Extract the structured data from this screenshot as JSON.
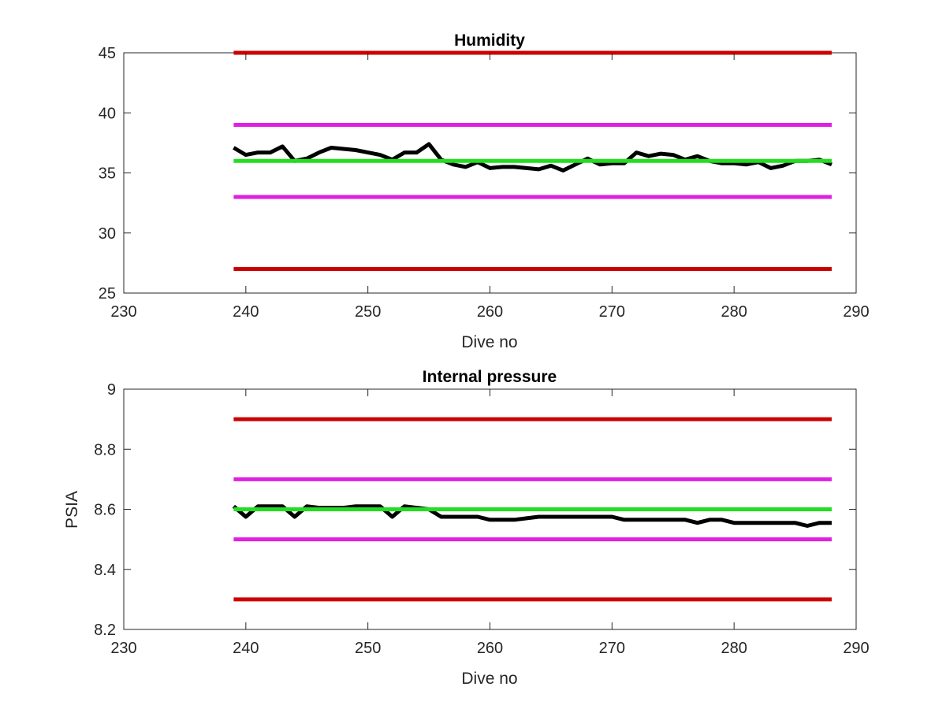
{
  "chart_data": [
    {
      "type": "line",
      "title": "Humidity",
      "xlabel": "Dive no",
      "ylabel": "",
      "xlim": [
        230,
        290
      ],
      "ylim": [
        25,
        45
      ],
      "xticks": [
        "230",
        "240",
        "250",
        "260",
        "270",
        "280",
        "290"
      ],
      "yticks": [
        "25",
        "30",
        "35",
        "40",
        "45"
      ],
      "grid": false,
      "series": [
        {
          "color": "#cc0000",
          "x": [
            239,
            288
          ],
          "y": [
            45,
            45
          ]
        },
        {
          "color": "#e020e0",
          "x": [
            239,
            288
          ],
          "y": [
            39,
            39
          ]
        },
        {
          "color": "#000000",
          "x": [
            239,
            240,
            241,
            242,
            243,
            244,
            245,
            246,
            247,
            248,
            249,
            250,
            251,
            252,
            253,
            254,
            255,
            256,
            257,
            258,
            259,
            260,
            261,
            262,
            263,
            264,
            265,
            266,
            267,
            268,
            269,
            270,
            271,
            272,
            273,
            274,
            275,
            276,
            277,
            278,
            279,
            280,
            281,
            282,
            283,
            284,
            285,
            286,
            287,
            288
          ],
          "y": [
            37.1,
            36.5,
            36.7,
            36.7,
            37.2,
            36.0,
            36.2,
            36.7,
            37.1,
            37.0,
            36.9,
            36.7,
            36.5,
            36.1,
            36.7,
            36.7,
            37.4,
            36.1,
            35.7,
            35.5,
            35.9,
            35.4,
            35.5,
            35.5,
            35.4,
            35.3,
            35.6,
            35.2,
            35.7,
            36.2,
            35.7,
            35.8,
            35.8,
            36.7,
            36.4,
            36.6,
            36.5,
            36.1,
            36.4,
            36.0,
            35.8,
            35.8,
            35.7,
            35.9,
            35.4,
            35.6,
            36.0,
            36.0,
            36.1,
            35.7
          ]
        },
        {
          "color": "#22dd22",
          "x": [
            239,
            288
          ],
          "y": [
            36,
            36
          ]
        },
        {
          "color": "#e020e0",
          "x": [
            239,
            288
          ],
          "y": [
            33,
            33
          ]
        },
        {
          "color": "#cc0000",
          "x": [
            239,
            288
          ],
          "y": [
            27,
            27
          ]
        }
      ]
    },
    {
      "type": "line",
      "title": "Internal pressure",
      "xlabel": "Dive no",
      "ylabel": "PSIA",
      "xlim": [
        230,
        290
      ],
      "ylim": [
        8.2,
        9
      ],
      "xticks": [
        "230",
        "240",
        "250",
        "260",
        "270",
        "280",
        "290"
      ],
      "yticks": [
        "8.2",
        "8.4",
        "8.6",
        "8.8",
        "9"
      ],
      "grid": false,
      "series": [
        {
          "color": "#cc0000",
          "x": [
            239,
            288
          ],
          "y": [
            8.9,
            8.9
          ]
        },
        {
          "color": "#e020e0",
          "x": [
            239,
            288
          ],
          "y": [
            8.7,
            8.7
          ]
        },
        {
          "color": "#000000",
          "x": [
            239,
            240,
            241,
            242,
            243,
            244,
            245,
            246,
            247,
            248,
            249,
            250,
            251,
            252,
            253,
            254,
            255,
            256,
            257,
            258,
            259,
            260,
            261,
            262,
            263,
            264,
            265,
            266,
            267,
            268,
            269,
            270,
            271,
            272,
            273,
            274,
            275,
            276,
            277,
            278,
            279,
            280,
            281,
            282,
            283,
            284,
            285,
            286,
            287,
            288
          ],
          "y": [
            8.61,
            8.575,
            8.61,
            8.61,
            8.61,
            8.575,
            8.61,
            8.605,
            8.605,
            8.605,
            8.61,
            8.61,
            8.61,
            8.575,
            8.61,
            8.605,
            8.6,
            8.575,
            8.575,
            8.575,
            8.575,
            8.565,
            8.565,
            8.565,
            8.57,
            8.575,
            8.575,
            8.575,
            8.575,
            8.575,
            8.575,
            8.575,
            8.565,
            8.565,
            8.565,
            8.565,
            8.565,
            8.565,
            8.555,
            8.565,
            8.565,
            8.555,
            8.555,
            8.555,
            8.555,
            8.555,
            8.555,
            8.545,
            8.555,
            8.555
          ]
        },
        {
          "color": "#22dd22",
          "x": [
            239,
            288
          ],
          "y": [
            8.6,
            8.6
          ]
        },
        {
          "color": "#e020e0",
          "x": [
            239,
            288
          ],
          "y": [
            8.5,
            8.5
          ]
        },
        {
          "color": "#cc0000",
          "x": [
            239,
            288
          ],
          "y": [
            8.3,
            8.3
          ]
        }
      ]
    }
  ]
}
